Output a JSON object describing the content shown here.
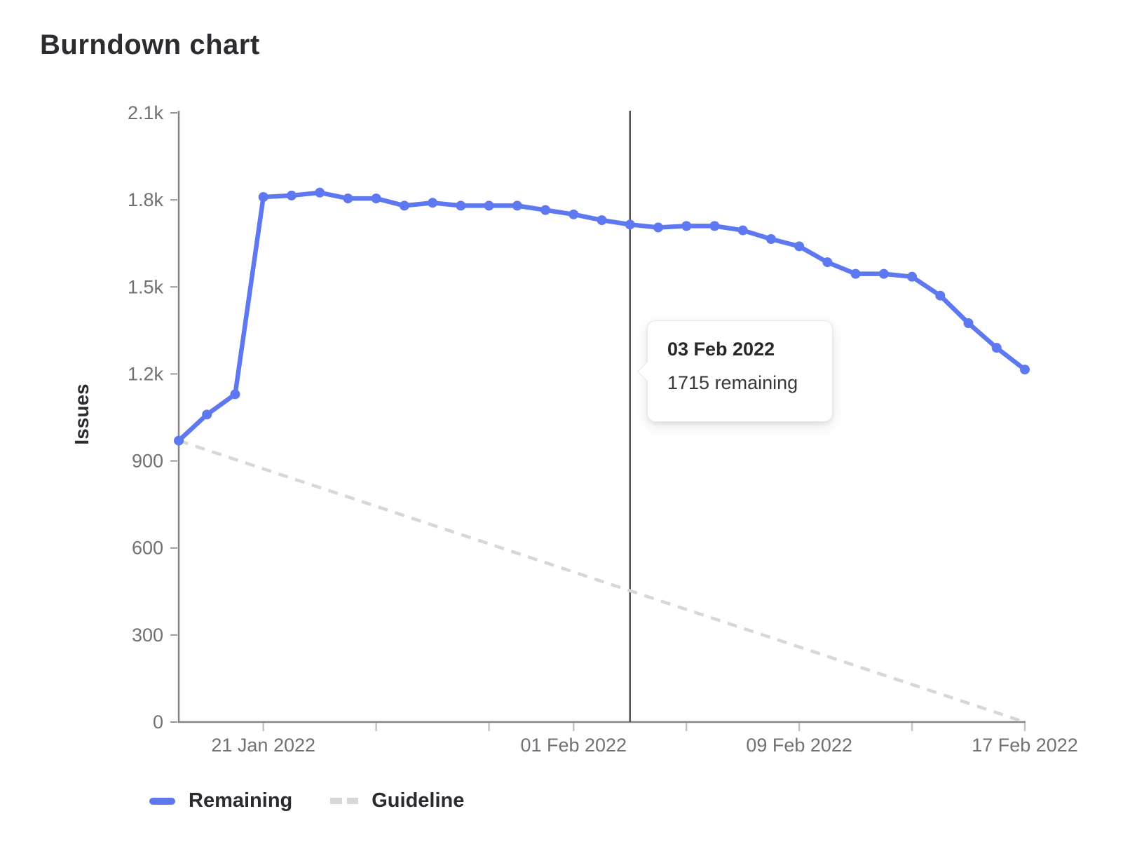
{
  "page": {
    "title": "Burndown chart"
  },
  "chart_data": {
    "type": "line",
    "title": "Burndown chart",
    "xlabel": "",
    "ylabel": "Issues",
    "ylim": [
      0,
      2100
    ],
    "x_domain_days": 30,
    "y_ticks": [
      {
        "value": 0,
        "label": "0"
      },
      {
        "value": 300,
        "label": "300"
      },
      {
        "value": 600,
        "label": "600"
      },
      {
        "value": 900,
        "label": "900"
      },
      {
        "value": 1200,
        "label": "1.2k"
      },
      {
        "value": 1500,
        "label": "1.5k"
      },
      {
        "value": 1800,
        "label": "1.8k"
      },
      {
        "value": 2100,
        "label": "2.1k"
      }
    ],
    "x_ticks": [
      {
        "day": 3,
        "label": "21 Jan 2022"
      },
      {
        "day": 7,
        "label": ""
      },
      {
        "day": 11,
        "label": ""
      },
      {
        "day": 14,
        "label": "01 Feb 2022"
      },
      {
        "day": 18,
        "label": ""
      },
      {
        "day": 22,
        "label": "09 Feb 2022"
      },
      {
        "day": 26,
        "label": ""
      },
      {
        "day": 30,
        "label": "17 Feb 2022"
      }
    ],
    "series": [
      {
        "name": "Remaining",
        "style": "solid",
        "color": "#5d78f0",
        "values": [
          970,
          1060,
          1130,
          1810,
          1815,
          1825,
          1805,
          1805,
          1780,
          1790,
          1780,
          1780,
          1780,
          1765,
          1750,
          1730,
          1715,
          1705,
          1710,
          1710,
          1695,
          1665,
          1640,
          1585,
          1545,
          1545,
          1535,
          1470,
          1375,
          1290,
          1215
        ]
      },
      {
        "name": "Guideline",
        "style": "dashed",
        "color": "#d7d7d7",
        "values_endpoints": [
          {
            "day": 0,
            "value": 970
          },
          {
            "day": 30,
            "value": 0
          }
        ]
      }
    ],
    "marker_line": {
      "day": 16,
      "color": "#515055"
    },
    "tooltip": {
      "title": "03 Feb 2022",
      "body": "1715 remaining"
    },
    "legend": [
      {
        "label": "Remaining",
        "color": "#5d78f0",
        "style": "solid"
      },
      {
        "label": "Guideline",
        "color": "#d8d8d8",
        "style": "dashed"
      }
    ],
    "colors": {
      "axis": "#85848b",
      "y_tick_mark": "#98979c",
      "x_tick_mark": "#c3c3c7",
      "tick_label": "#707075",
      "text_dark": "#2c2b30"
    }
  }
}
